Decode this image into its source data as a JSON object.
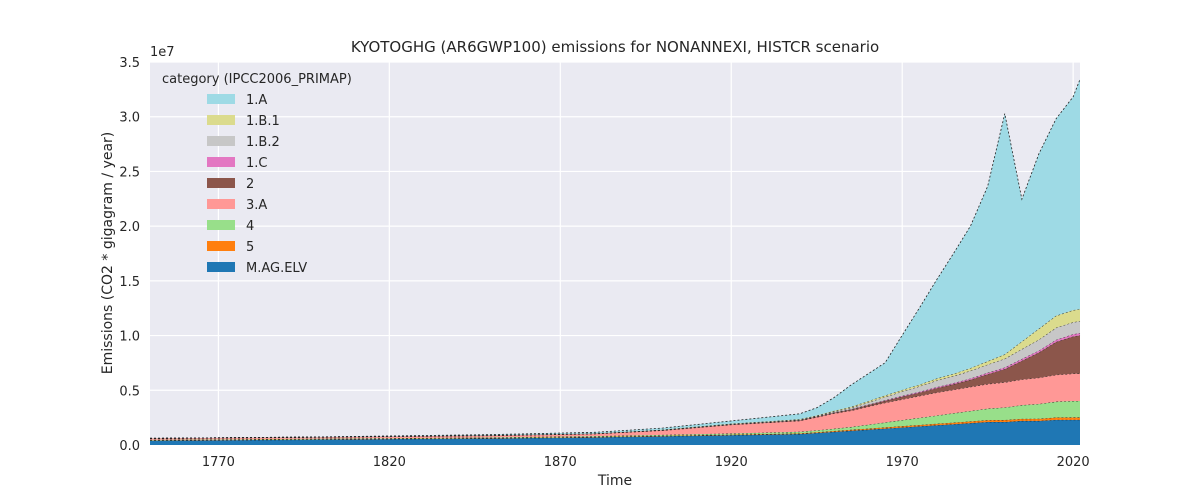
{
  "chart_data": {
    "type": "area",
    "stacked": true,
    "title": "KYOTOGHG (AR6GWP100) emissions for NONANNEXI, HISTCR scenario",
    "xlabel": "Time",
    "ylabel": "Emissions (CO2 * gigagram / year)",
    "y_multiplier_label": "1e7",
    "xlim": [
      1750,
      2022
    ],
    "ylim": [
      0,
      3.5
    ],
    "x_ticks": [
      1770,
      1820,
      1870,
      1920,
      1970,
      2020
    ],
    "y_ticks": [
      0.0,
      0.5,
      1.0,
      1.5,
      2.0,
      2.5,
      3.0,
      3.5
    ],
    "y_tick_labels": [
      "0.0",
      "0.5",
      "1.0",
      "1.5",
      "2.0",
      "2.5",
      "3.0",
      "3.5"
    ],
    "grid": true,
    "legend_title": "category (IPCC2006_PRIMAP)",
    "legend_position": "upper left",
    "x": [
      1750,
      1800,
      1850,
      1880,
      1900,
      1920,
      1940,
      1945,
      1950,
      1955,
      1960,
      1965,
      1970,
      1975,
      1980,
      1985,
      1990,
      1995,
      2000,
      2005,
      2010,
      2015,
      2020,
      2022
    ],
    "series": [
      {
        "name": "M.AG.ELV",
        "color": "#1f77b4",
        "values": [
          0.04,
          0.05,
          0.06,
          0.07,
          0.08,
          0.09,
          0.1,
          0.11,
          0.12,
          0.13,
          0.14,
          0.15,
          0.16,
          0.17,
          0.18,
          0.19,
          0.2,
          0.21,
          0.21,
          0.22,
          0.22,
          0.23,
          0.23,
          0.23
        ]
      },
      {
        "name": "5",
        "color": "#ff7f0e",
        "values": [
          0.003,
          0.003,
          0.004,
          0.004,
          0.005,
          0.005,
          0.006,
          0.007,
          0.008,
          0.009,
          0.01,
          0.011,
          0.012,
          0.013,
          0.014,
          0.015,
          0.016,
          0.017,
          0.018,
          0.019,
          0.02,
          0.021,
          0.022,
          0.022
        ]
      },
      {
        "name": "4",
        "color": "#98df8a",
        "values": [
          0.005,
          0.005,
          0.006,
          0.007,
          0.008,
          0.01,
          0.015,
          0.017,
          0.02,
          0.025,
          0.035,
          0.045,
          0.055,
          0.065,
          0.075,
          0.085,
          0.095,
          0.105,
          0.115,
          0.125,
          0.135,
          0.145,
          0.15,
          0.15
        ]
      },
      {
        "name": "3.A",
        "color": "#ff9896",
        "values": [
          0.01,
          0.012,
          0.015,
          0.02,
          0.04,
          0.08,
          0.1,
          0.12,
          0.14,
          0.15,
          0.165,
          0.18,
          0.19,
          0.2,
          0.21,
          0.215,
          0.22,
          0.225,
          0.23,
          0.235,
          0.24,
          0.245,
          0.25,
          0.25
        ]
      },
      {
        "name": "2",
        "color": "#8c564b",
        "values": [
          0.002,
          0.002,
          0.003,
          0.003,
          0.003,
          0.004,
          0.005,
          0.005,
          0.007,
          0.01,
          0.014,
          0.018,
          0.025,
          0.03,
          0.04,
          0.05,
          0.065,
          0.09,
          0.12,
          0.17,
          0.23,
          0.3,
          0.34,
          0.35
        ]
      },
      {
        "name": "1.C",
        "color": "#e377c2",
        "values": [
          0.0,
          0.0,
          0.0,
          0.0,
          0.0,
          0.0,
          0.001,
          0.001,
          0.002,
          0.003,
          0.004,
          0.005,
          0.007,
          0.008,
          0.009,
          0.01,
          0.012,
          0.013,
          0.015,
          0.017,
          0.018,
          0.02,
          0.02,
          0.02
        ]
      },
      {
        "name": "1.B.2",
        "color": "#c7c7c7",
        "values": [
          0.001,
          0.001,
          0.001,
          0.001,
          0.002,
          0.003,
          0.004,
          0.005,
          0.008,
          0.012,
          0.02,
          0.03,
          0.04,
          0.05,
          0.06,
          0.065,
          0.07,
          0.075,
          0.08,
          0.09,
          0.1,
          0.11,
          0.11,
          0.11
        ]
      },
      {
        "name": "1.B.1",
        "color": "#dbdb8d",
        "values": [
          0.0,
          0.0,
          0.001,
          0.001,
          0.002,
          0.003,
          0.004,
          0.005,
          0.007,
          0.009,
          0.012,
          0.013,
          0.014,
          0.015,
          0.018,
          0.02,
          0.025,
          0.03,
          0.04,
          0.07,
          0.1,
          0.11,
          0.11,
          0.11
        ]
      },
      {
        "name": "1.A",
        "color": "#9edae5",
        "values": [
          0.0,
          0.001,
          0.005,
          0.01,
          0.015,
          0.025,
          0.05,
          0.07,
          0.12,
          0.2,
          0.25,
          0.3,
          0.5,
          0.7,
          0.9,
          1.1,
          1.3,
          1.6,
          2.2,
          1.3,
          1.6,
          1.8,
          1.95,
          2.1
        ]
      }
    ],
    "legend_order": [
      "1.A",
      "1.B.1",
      "1.B.2",
      "1.C",
      "2",
      "3.A",
      "4",
      "5",
      "M.AG.ELV"
    ]
  }
}
